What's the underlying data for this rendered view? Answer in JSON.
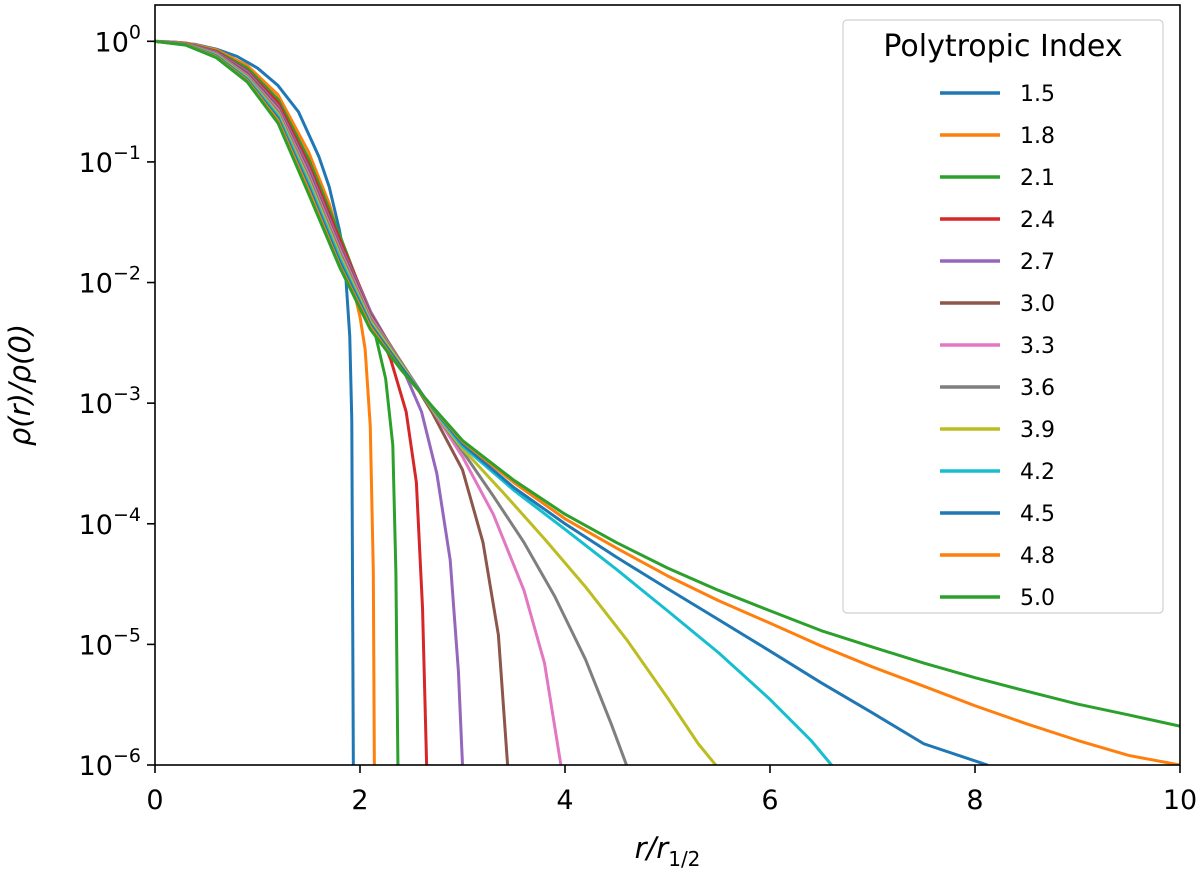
{
  "chart_data": {
    "type": "line",
    "title": "",
    "xlabel": "r/r",
    "xlabel_sub": "1/2",
    "ylabel": "ρ(r)/ρ(0)",
    "xlim": [
      0,
      10
    ],
    "ylim": [
      1e-06,
      2
    ],
    "yscale": "log",
    "grid": false,
    "xticks": [
      0,
      2,
      4,
      6,
      8,
      10
    ],
    "xtick_labels": [
      "0",
      "2",
      "4",
      "6",
      "8",
      "10"
    ],
    "yticks": [
      1,
      0.1,
      0.01,
      0.001,
      0.0001,
      1e-05,
      1e-06
    ],
    "ytick_base": "10",
    "ytick_exponents": [
      "0",
      "−1",
      "−2",
      "−3",
      "−4",
      "−5",
      "−6"
    ],
    "legend": {
      "title": "Polytropic Index",
      "placement": "top-right"
    },
    "series": [
      {
        "name": "1.5",
        "color": "#1f77b4",
        "x": [
          0,
          0.2,
          0.4,
          0.6,
          0.8,
          1.0,
          1.2,
          1.4,
          1.6,
          1.7,
          1.8,
          1.85,
          1.9,
          1.92,
          1.935
        ],
        "y": [
          1,
          0.985,
          0.94,
          0.86,
          0.75,
          0.6,
          0.43,
          0.26,
          0.11,
          0.062,
          0.027,
          0.0155,
          0.0036,
          0.00072,
          1e-06
        ]
      },
      {
        "name": "1.8",
        "color": "#ff7f0e",
        "x": [
          0,
          0.3,
          0.6,
          0.9,
          1.2,
          1.5,
          1.7,
          1.9,
          2.0,
          2.05,
          2.1,
          2.13,
          2.14
        ],
        "y": [
          1,
          0.97,
          0.85,
          0.63,
          0.36,
          0.12,
          0.045,
          0.012,
          0.0052,
          0.0028,
          0.00065,
          4e-05,
          1e-06
        ]
      },
      {
        "name": "2.1",
        "color": "#2ca02c",
        "x": [
          0,
          0.3,
          0.6,
          0.9,
          1.2,
          1.5,
          1.8,
          2.0,
          2.15,
          2.25,
          2.32,
          2.35,
          2.37
        ],
        "y": [
          1,
          0.96,
          0.83,
          0.6,
          0.33,
          0.105,
          0.025,
          0.009,
          0.0037,
          0.0016,
          0.00045,
          4e-05,
          1e-06
        ]
      },
      {
        "name": "2.4",
        "color": "#d62728",
        "x": [
          0,
          0.3,
          0.6,
          0.9,
          1.2,
          1.5,
          1.8,
          2.1,
          2.3,
          2.45,
          2.55,
          2.61,
          2.65
        ],
        "y": [
          1,
          0.96,
          0.82,
          0.57,
          0.31,
          0.095,
          0.023,
          0.0058,
          0.0023,
          0.00085,
          0.00022,
          2e-05,
          1e-06
        ]
      },
      {
        "name": "2.7",
        "color": "#9467bd",
        "x": [
          0,
          0.3,
          0.6,
          0.9,
          1.2,
          1.5,
          1.8,
          2.1,
          2.4,
          2.6,
          2.75,
          2.88,
          2.96,
          3.0
        ],
        "y": [
          1,
          0.96,
          0.81,
          0.56,
          0.29,
          0.088,
          0.021,
          0.0058,
          0.0021,
          0.00085,
          0.00026,
          5e-05,
          6e-06,
          1e-06
        ]
      },
      {
        "name": "3.0",
        "color": "#8c564b",
        "x": [
          0,
          0.3,
          0.6,
          0.9,
          1.2,
          1.5,
          1.8,
          2.1,
          2.4,
          2.7,
          3.0,
          3.2,
          3.35,
          3.44
        ],
        "y": [
          1,
          0.955,
          0.8,
          0.54,
          0.28,
          0.082,
          0.02,
          0.0055,
          0.0022,
          0.00085,
          0.00028,
          7e-05,
          1.2e-05,
          1e-06
        ]
      },
      {
        "name": "3.3",
        "color": "#e377c2",
        "x": [
          0,
          0.3,
          0.6,
          0.9,
          1.2,
          1.5,
          1.8,
          2.1,
          2.4,
          2.7,
          3.0,
          3.3,
          3.6,
          3.8,
          3.96
        ],
        "y": [
          1,
          0.95,
          0.79,
          0.52,
          0.27,
          0.078,
          0.019,
          0.0052,
          0.0022,
          0.0009,
          0.00036,
          0.00012,
          2.8e-05,
          7e-06,
          1e-06
        ]
      },
      {
        "name": "3.6",
        "color": "#7f7f7f",
        "x": [
          0,
          0.3,
          0.6,
          0.9,
          1.2,
          1.5,
          1.8,
          2.1,
          2.4,
          2.7,
          3.0,
          3.3,
          3.6,
          3.9,
          4.2,
          4.45,
          4.6
        ],
        "y": [
          1,
          0.95,
          0.78,
          0.51,
          0.26,
          0.074,
          0.018,
          0.005,
          0.0022,
          0.0009,
          0.0004,
          0.00017,
          7e-05,
          2.5e-05,
          7.5e-06,
          2.2e-06,
          1e-06
        ]
      },
      {
        "name": "3.9",
        "color": "#bcbd22",
        "x": [
          0,
          0.3,
          0.6,
          0.9,
          1.2,
          1.5,
          1.8,
          2.1,
          2.4,
          2.7,
          3.0,
          3.4,
          3.8,
          4.2,
          4.6,
          5.0,
          5.3,
          5.47
        ],
        "y": [
          1,
          0.945,
          0.77,
          0.5,
          0.25,
          0.07,
          0.017,
          0.0048,
          0.0021,
          0.0009,
          0.00042,
          0.00018,
          7.5e-05,
          3e-05,
          1.1e-05,
          3.6e-06,
          1.5e-06,
          1e-06
        ]
      },
      {
        "name": "4.2",
        "color": "#17becf",
        "x": [
          0,
          0.3,
          0.6,
          0.9,
          1.2,
          1.5,
          1.8,
          2.1,
          2.4,
          2.7,
          3.0,
          3.5,
          4.0,
          4.5,
          5.0,
          5.5,
          6.0,
          6.4,
          6.6
        ],
        "y": [
          1,
          0.94,
          0.76,
          0.49,
          0.24,
          0.066,
          0.016,
          0.0046,
          0.002,
          0.00092,
          0.00044,
          0.00019,
          9e-05,
          4.2e-05,
          1.9e-05,
          8.5e-06,
          3.5e-06,
          1.6e-06,
          1e-06
        ]
      },
      {
        "name": "4.5",
        "color": "#1f77b4",
        "x": [
          0,
          0.3,
          0.6,
          0.9,
          1.2,
          1.5,
          1.8,
          2.1,
          2.4,
          2.7,
          3.0,
          3.5,
          4.0,
          4.5,
          5.0,
          5.5,
          6.0,
          6.5,
          7.0,
          7.5,
          8.12
        ],
        "y": [
          1,
          0.94,
          0.75,
          0.48,
          0.23,
          0.062,
          0.015,
          0.0045,
          0.002,
          0.00093,
          0.00046,
          0.0002,
          0.0001,
          5.3e-05,
          2.9e-05,
          1.6e-05,
          8.8e-06,
          4.8e-06,
          2.7e-06,
          1.5e-06,
          1e-06
        ]
      },
      {
        "name": "4.8",
        "color": "#ff7f0e",
        "x": [
          0,
          0.3,
          0.6,
          0.9,
          1.2,
          1.5,
          1.8,
          2.1,
          2.4,
          2.7,
          3.0,
          3.5,
          4.0,
          4.5,
          5.0,
          5.5,
          6.0,
          6.5,
          7.0,
          7.5,
          8.0,
          8.5,
          9.0,
          9.5,
          10.0
        ],
        "y": [
          1,
          0.935,
          0.74,
          0.47,
          0.22,
          0.058,
          0.014,
          0.0043,
          0.0019,
          0.00094,
          0.00048,
          0.00022,
          0.00011,
          6.3e-05,
          3.7e-05,
          2.3e-05,
          1.5e-05,
          9.7e-06,
          6.5e-06,
          4.5e-06,
          3.1e-06,
          2.2e-06,
          1.6e-06,
          1.2e-06,
          9e-07
        ]
      },
      {
        "name": "5.0",
        "color": "#2ca02c",
        "x": [
          0,
          0.3,
          0.6,
          0.9,
          1.2,
          1.5,
          1.8,
          2.1,
          2.4,
          2.7,
          3.0,
          3.5,
          4.0,
          4.5,
          5.0,
          5.5,
          6.0,
          6.5,
          7.0,
          7.5,
          8.0,
          8.5,
          9.0,
          9.5,
          10.0
        ],
        "y": [
          1,
          0.93,
          0.73,
          0.46,
          0.21,
          0.054,
          0.0135,
          0.0041,
          0.0019,
          0.00095,
          0.00049,
          0.00023,
          0.00012,
          7e-05,
          4.3e-05,
          2.8e-05,
          1.9e-05,
          1.3e-05,
          9.5e-06,
          7e-06,
          5.3e-06,
          4.1e-06,
          3.2e-06,
          2.6e-06,
          2.1e-06
        ]
      }
    ]
  }
}
